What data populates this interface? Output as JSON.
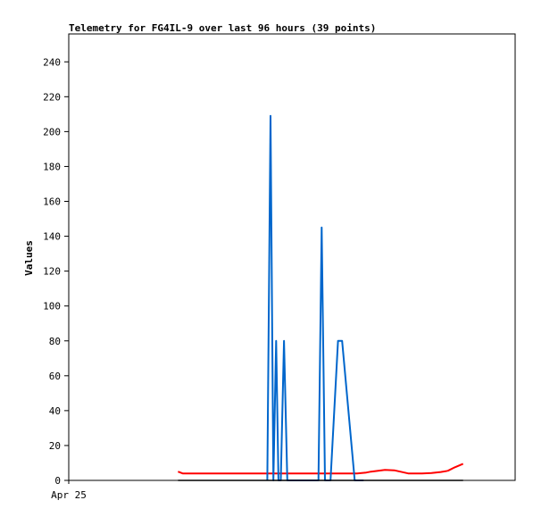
{
  "chart_data": {
    "type": "line",
    "title": "Telemetry for FG4IL-9 over last 96 hours (39 points)",
    "xlabel": "",
    "ylabel": "Values",
    "x_tick_labels": [
      "Apr 25"
    ],
    "y_ticks": [
      0,
      20,
      40,
      60,
      80,
      100,
      120,
      140,
      160,
      180,
      200,
      220,
      240
    ],
    "ylim": [
      0,
      256
    ],
    "xlim": [
      0,
      96
    ],
    "grid": false,
    "legend": "none",
    "series": [
      {
        "color": "#ff0000",
        "x": [
          23.5,
          24.5,
          25.5,
          27,
          30,
          35,
          40,
          45,
          50,
          55,
          60,
          62,
          64,
          65,
          66.5,
          68,
          70,
          73,
          76,
          78,
          80,
          81.5
        ],
        "values": [
          5,
          4,
          4,
          4,
          4,
          4,
          4,
          4,
          4,
          4,
          4,
          4,
          4.5,
          5,
          5.5,
          6,
          5.8,
          4,
          4,
          4.2,
          4.8,
          5.5
        ]
      },
      {
        "color": "#ff0000",
        "x": [
          81.5,
          83,
          84.8
        ],
        "values": [
          5.5,
          7.5,
          9.5
        ]
      },
      {
        "color": "#0066cc",
        "x": [
          42.7,
          43.4,
          44.0,
          44.6,
          45.1,
          45.6,
          46.3,
          47.0,
          47.8,
          48.6,
          53.7,
          54.4,
          55.1,
          56.3,
          57.9,
          58.8,
          61.5,
          63.4
        ],
        "values": [
          0,
          209,
          0,
          80,
          0,
          0,
          80,
          0,
          0,
          0,
          0,
          145,
          0,
          0,
          80,
          80,
          0,
          0
        ]
      },
      {
        "color": "#000000",
        "x": [
          23.5,
          84.8
        ],
        "values": [
          0,
          0
        ]
      }
    ]
  }
}
